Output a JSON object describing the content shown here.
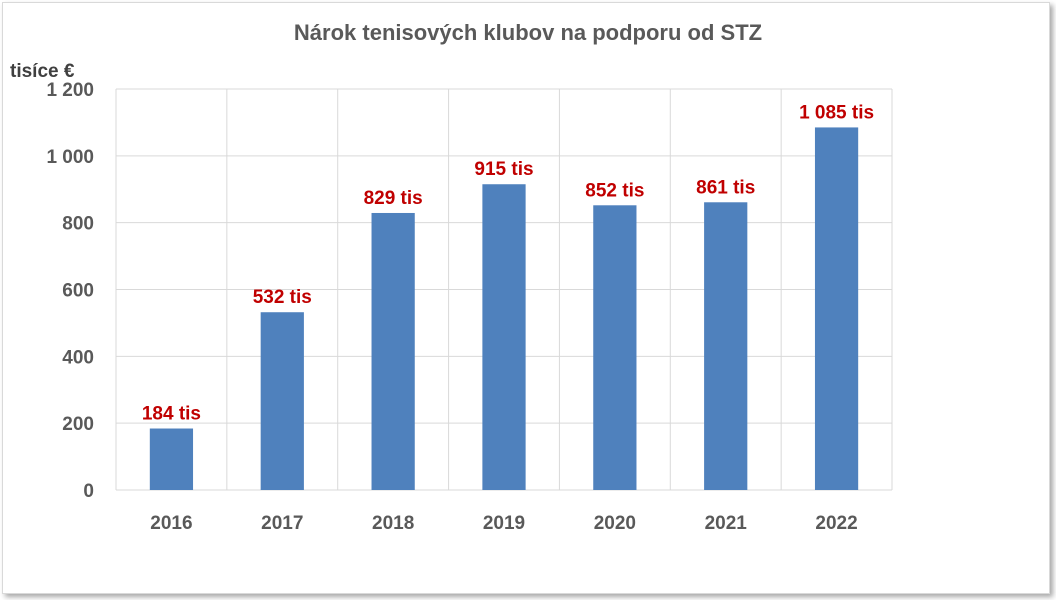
{
  "chart_data": {
    "type": "bar",
    "title": "Nárok tenisových klubov na podporu od STZ",
    "ylabel": "tisíce €",
    "xlabel": "",
    "categories": [
      "2016",
      "2017",
      "2018",
      "2019",
      "2020",
      "2021",
      "2022"
    ],
    "values": [
      184,
      532,
      829,
      915,
      852,
      861,
      1085
    ],
    "data_labels": [
      "184 tis",
      "532 tis",
      "829 tis",
      "915 tis",
      "852 tis",
      "861 tis",
      "1 085 tis"
    ],
    "ylim": [
      0,
      1200
    ],
    "yticks": [
      0,
      200,
      400,
      600,
      800,
      1000,
      1200
    ],
    "ytick_labels": [
      "0",
      "200",
      "400",
      "600",
      "800",
      "1 000",
      "1 200"
    ],
    "grid": true,
    "legend": "none",
    "colors": {
      "bar": "#4F81BD",
      "data_label": "#C00000",
      "grid": "#d9d9d9"
    }
  }
}
